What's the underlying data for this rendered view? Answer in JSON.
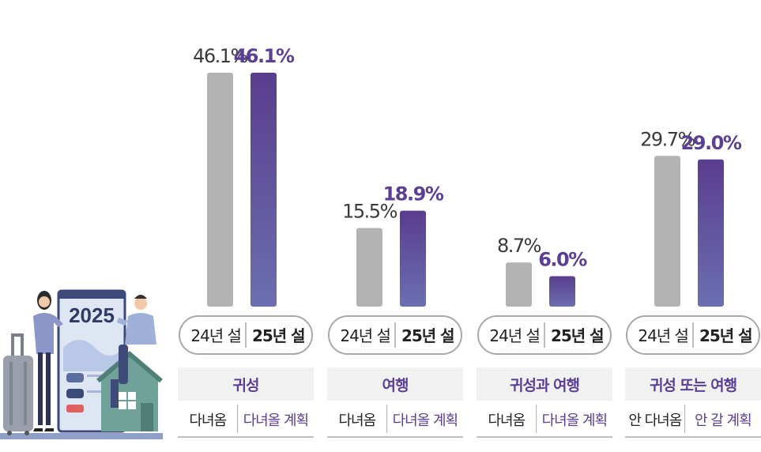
{
  "colors": {
    "bar_2024": "#b3b3b3",
    "bar_2025_top": "#5a3d8e",
    "bar_2025_bottom": "#6b6fb0",
    "value_2024": "#3a3a3a",
    "value_2025": "#5b3f94",
    "pill_border": "#a8a8a8",
    "category_bg": "#f1f1f1",
    "category_text": "#5b3f94",
    "divider": "#aaaaaa"
  },
  "illustration": {
    "calendar_year": "2025"
  },
  "chart_data": {
    "type": "bar",
    "series": [
      {
        "values": [
          46.1,
          15.5,
          8.7,
          29.7
        ]
      },
      {
        "values": [
          46.1,
          18.9,
          6.0,
          29.0
        ]
      }
    ],
    "groups": [
      {
        "category": "귀성",
        "pill": [
          "24년 설",
          "25년 설"
        ],
        "sub": [
          "다녀옴",
          "다녀올 계획"
        ],
        "value_labels": [
          "46.1%",
          "46.1%"
        ]
      },
      {
        "category": "여행",
        "pill": [
          "24년 설",
          "25년 설"
        ],
        "sub": [
          "다녀옴",
          "다녀올 계획"
        ],
        "value_labels": [
          "15.5%",
          "18.9%"
        ]
      },
      {
        "category": "귀성과 여행",
        "pill": [
          "24년 설",
          "25년 설"
        ],
        "sub": [
          "다녀옴",
          "다녀올 계획"
        ],
        "value_labels": [
          "8.7%",
          "6.0%"
        ]
      },
      {
        "category": "귀성 또는 여행",
        "pill": [
          "24년 설",
          "25년 설"
        ],
        "sub": [
          "안 다녀옴",
          "안 갈 계획"
        ],
        "value_labels": [
          "29.7%",
          "29.0%"
        ]
      }
    ],
    "ylim": [
      0,
      46.1
    ],
    "grid": false
  }
}
